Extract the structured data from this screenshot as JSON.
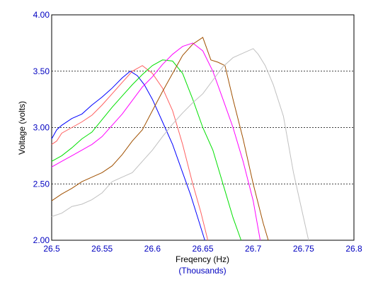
{
  "chart_data": {
    "type": "line",
    "xlabel": "Freqency (Hz)",
    "xlabel_sub": "(Thousands)",
    "ylabel": "Voltage (volts)",
    "xlim": [
      26.5,
      26.8
    ],
    "ylim": [
      2.0,
      4.0
    ],
    "x_ticks": [
      "26.5",
      "26.55",
      "26.6",
      "26.65",
      "26.7",
      "26.75",
      "26.8"
    ],
    "x_tick_values": [
      26.5,
      26.55,
      26.6,
      26.65,
      26.7,
      26.75,
      26.8
    ],
    "y_ticks": [
      "2.00",
      "2.50",
      "3.00",
      "3.50",
      "4.00"
    ],
    "y_tick_values": [
      2.0,
      2.5,
      3.0,
      3.5,
      4.0
    ],
    "grid": "horizontal dashed at 2.50, 3.00, 3.50",
    "tick_label_color": "#0000c0",
    "series": [
      {
        "color": "#0000ff",
        "points": [
          [
            26.5,
            2.9
          ],
          [
            26.505,
            2.98
          ],
          [
            26.51,
            3.02
          ],
          [
            26.52,
            3.08
          ],
          [
            26.53,
            3.12
          ],
          [
            26.54,
            3.2
          ],
          [
            26.55,
            3.27
          ],
          [
            26.56,
            3.35
          ],
          [
            26.57,
            3.44
          ],
          [
            26.578,
            3.5
          ],
          [
            26.585,
            3.46
          ],
          [
            26.592,
            3.38
          ],
          [
            26.6,
            3.25
          ],
          [
            26.61,
            3.05
          ],
          [
            26.62,
            2.85
          ],
          [
            26.63,
            2.6
          ],
          [
            26.638,
            2.4
          ],
          [
            26.645,
            2.2
          ],
          [
            26.652,
            2.0
          ]
        ]
      },
      {
        "color": "#ff6060",
        "points": [
          [
            26.5,
            2.85
          ],
          [
            26.505,
            2.88
          ],
          [
            26.51,
            2.95
          ],
          [
            26.52,
            3.0
          ],
          [
            26.53,
            3.05
          ],
          [
            26.54,
            3.11
          ],
          [
            26.55,
            3.2
          ],
          [
            26.56,
            3.3
          ],
          [
            26.57,
            3.4
          ],
          [
            26.58,
            3.5
          ],
          [
            26.59,
            3.55
          ],
          [
            26.6,
            3.48
          ],
          [
            26.61,
            3.35
          ],
          [
            26.62,
            3.15
          ],
          [
            26.63,
            2.85
          ],
          [
            26.64,
            2.5
          ],
          [
            26.648,
            2.25
          ],
          [
            26.655,
            2.0
          ]
        ]
      },
      {
        "color": "#00e000",
        "points": [
          [
            26.5,
            2.7
          ],
          [
            26.51,
            2.75
          ],
          [
            26.52,
            2.82
          ],
          [
            26.53,
            2.9
          ],
          [
            26.54,
            2.96
          ],
          [
            26.55,
            3.07
          ],
          [
            26.56,
            3.18
          ],
          [
            26.57,
            3.28
          ],
          [
            26.58,
            3.38
          ],
          [
            26.59,
            3.47
          ],
          [
            26.6,
            3.55
          ],
          [
            26.61,
            3.6
          ],
          [
            26.62,
            3.59
          ],
          [
            26.63,
            3.48
          ],
          [
            26.64,
            3.25
          ],
          [
            26.65,
            3.0
          ],
          [
            26.66,
            2.8
          ],
          [
            26.67,
            2.5
          ],
          [
            26.68,
            2.2
          ],
          [
            26.688,
            2.0
          ]
        ]
      },
      {
        "color": "#ff00ff",
        "points": [
          [
            26.5,
            2.65
          ],
          [
            26.51,
            2.7
          ],
          [
            26.52,
            2.75
          ],
          [
            26.53,
            2.8
          ],
          [
            26.54,
            2.85
          ],
          [
            26.55,
            2.92
          ],
          [
            26.56,
            3.02
          ],
          [
            26.57,
            3.12
          ],
          [
            26.58,
            3.24
          ],
          [
            26.59,
            3.36
          ],
          [
            26.6,
            3.45
          ],
          [
            26.61,
            3.56
          ],
          [
            26.62,
            3.65
          ],
          [
            26.63,
            3.72
          ],
          [
            26.64,
            3.75
          ],
          [
            26.65,
            3.68
          ],
          [
            26.66,
            3.5
          ],
          [
            26.67,
            3.25
          ],
          [
            26.68,
            3.0
          ],
          [
            26.69,
            2.7
          ],
          [
            26.7,
            2.35
          ],
          [
            26.707,
            2.0
          ]
        ]
      },
      {
        "color": "#a05000",
        "points": [
          [
            26.5,
            2.35
          ],
          [
            26.51,
            2.41
          ],
          [
            26.52,
            2.46
          ],
          [
            26.53,
            2.52
          ],
          [
            26.54,
            2.56
          ],
          [
            26.55,
            2.6
          ],
          [
            26.56,
            2.66
          ],
          [
            26.57,
            2.76
          ],
          [
            26.58,
            2.88
          ],
          [
            26.59,
            2.98
          ],
          [
            26.6,
            3.15
          ],
          [
            26.61,
            3.32
          ],
          [
            26.62,
            3.48
          ],
          [
            26.63,
            3.64
          ],
          [
            26.64,
            3.74
          ],
          [
            26.65,
            3.8
          ],
          [
            26.658,
            3.6
          ],
          [
            26.665,
            3.58
          ],
          [
            26.672,
            3.55
          ],
          [
            26.68,
            3.25
          ],
          [
            26.69,
            2.9
          ],
          [
            26.7,
            2.5
          ],
          [
            26.71,
            2.15
          ],
          [
            26.715,
            2.0
          ]
        ]
      },
      {
        "color": "#c0c0c0",
        "points": [
          [
            26.5,
            2.21
          ],
          [
            26.51,
            2.24
          ],
          [
            26.52,
            2.3
          ],
          [
            26.53,
            2.32
          ],
          [
            26.54,
            2.36
          ],
          [
            26.55,
            2.42
          ],
          [
            26.56,
            2.52
          ],
          [
            26.57,
            2.56
          ],
          [
            26.58,
            2.6
          ],
          [
            26.59,
            2.7
          ],
          [
            26.6,
            2.8
          ],
          [
            26.61,
            2.92
          ],
          [
            26.62,
            3.03
          ],
          [
            26.63,
            3.13
          ],
          [
            26.64,
            3.22
          ],
          [
            26.65,
            3.3
          ],
          [
            26.66,
            3.42
          ],
          [
            26.67,
            3.54
          ],
          [
            26.68,
            3.62
          ],
          [
            26.69,
            3.66
          ],
          [
            26.7,
            3.7
          ],
          [
            26.705,
            3.65
          ],
          [
            26.712,
            3.55
          ],
          [
            26.72,
            3.38
          ],
          [
            26.73,
            3.1
          ],
          [
            26.74,
            2.6
          ],
          [
            26.75,
            2.2
          ],
          [
            26.755,
            2.0
          ]
        ]
      }
    ]
  }
}
